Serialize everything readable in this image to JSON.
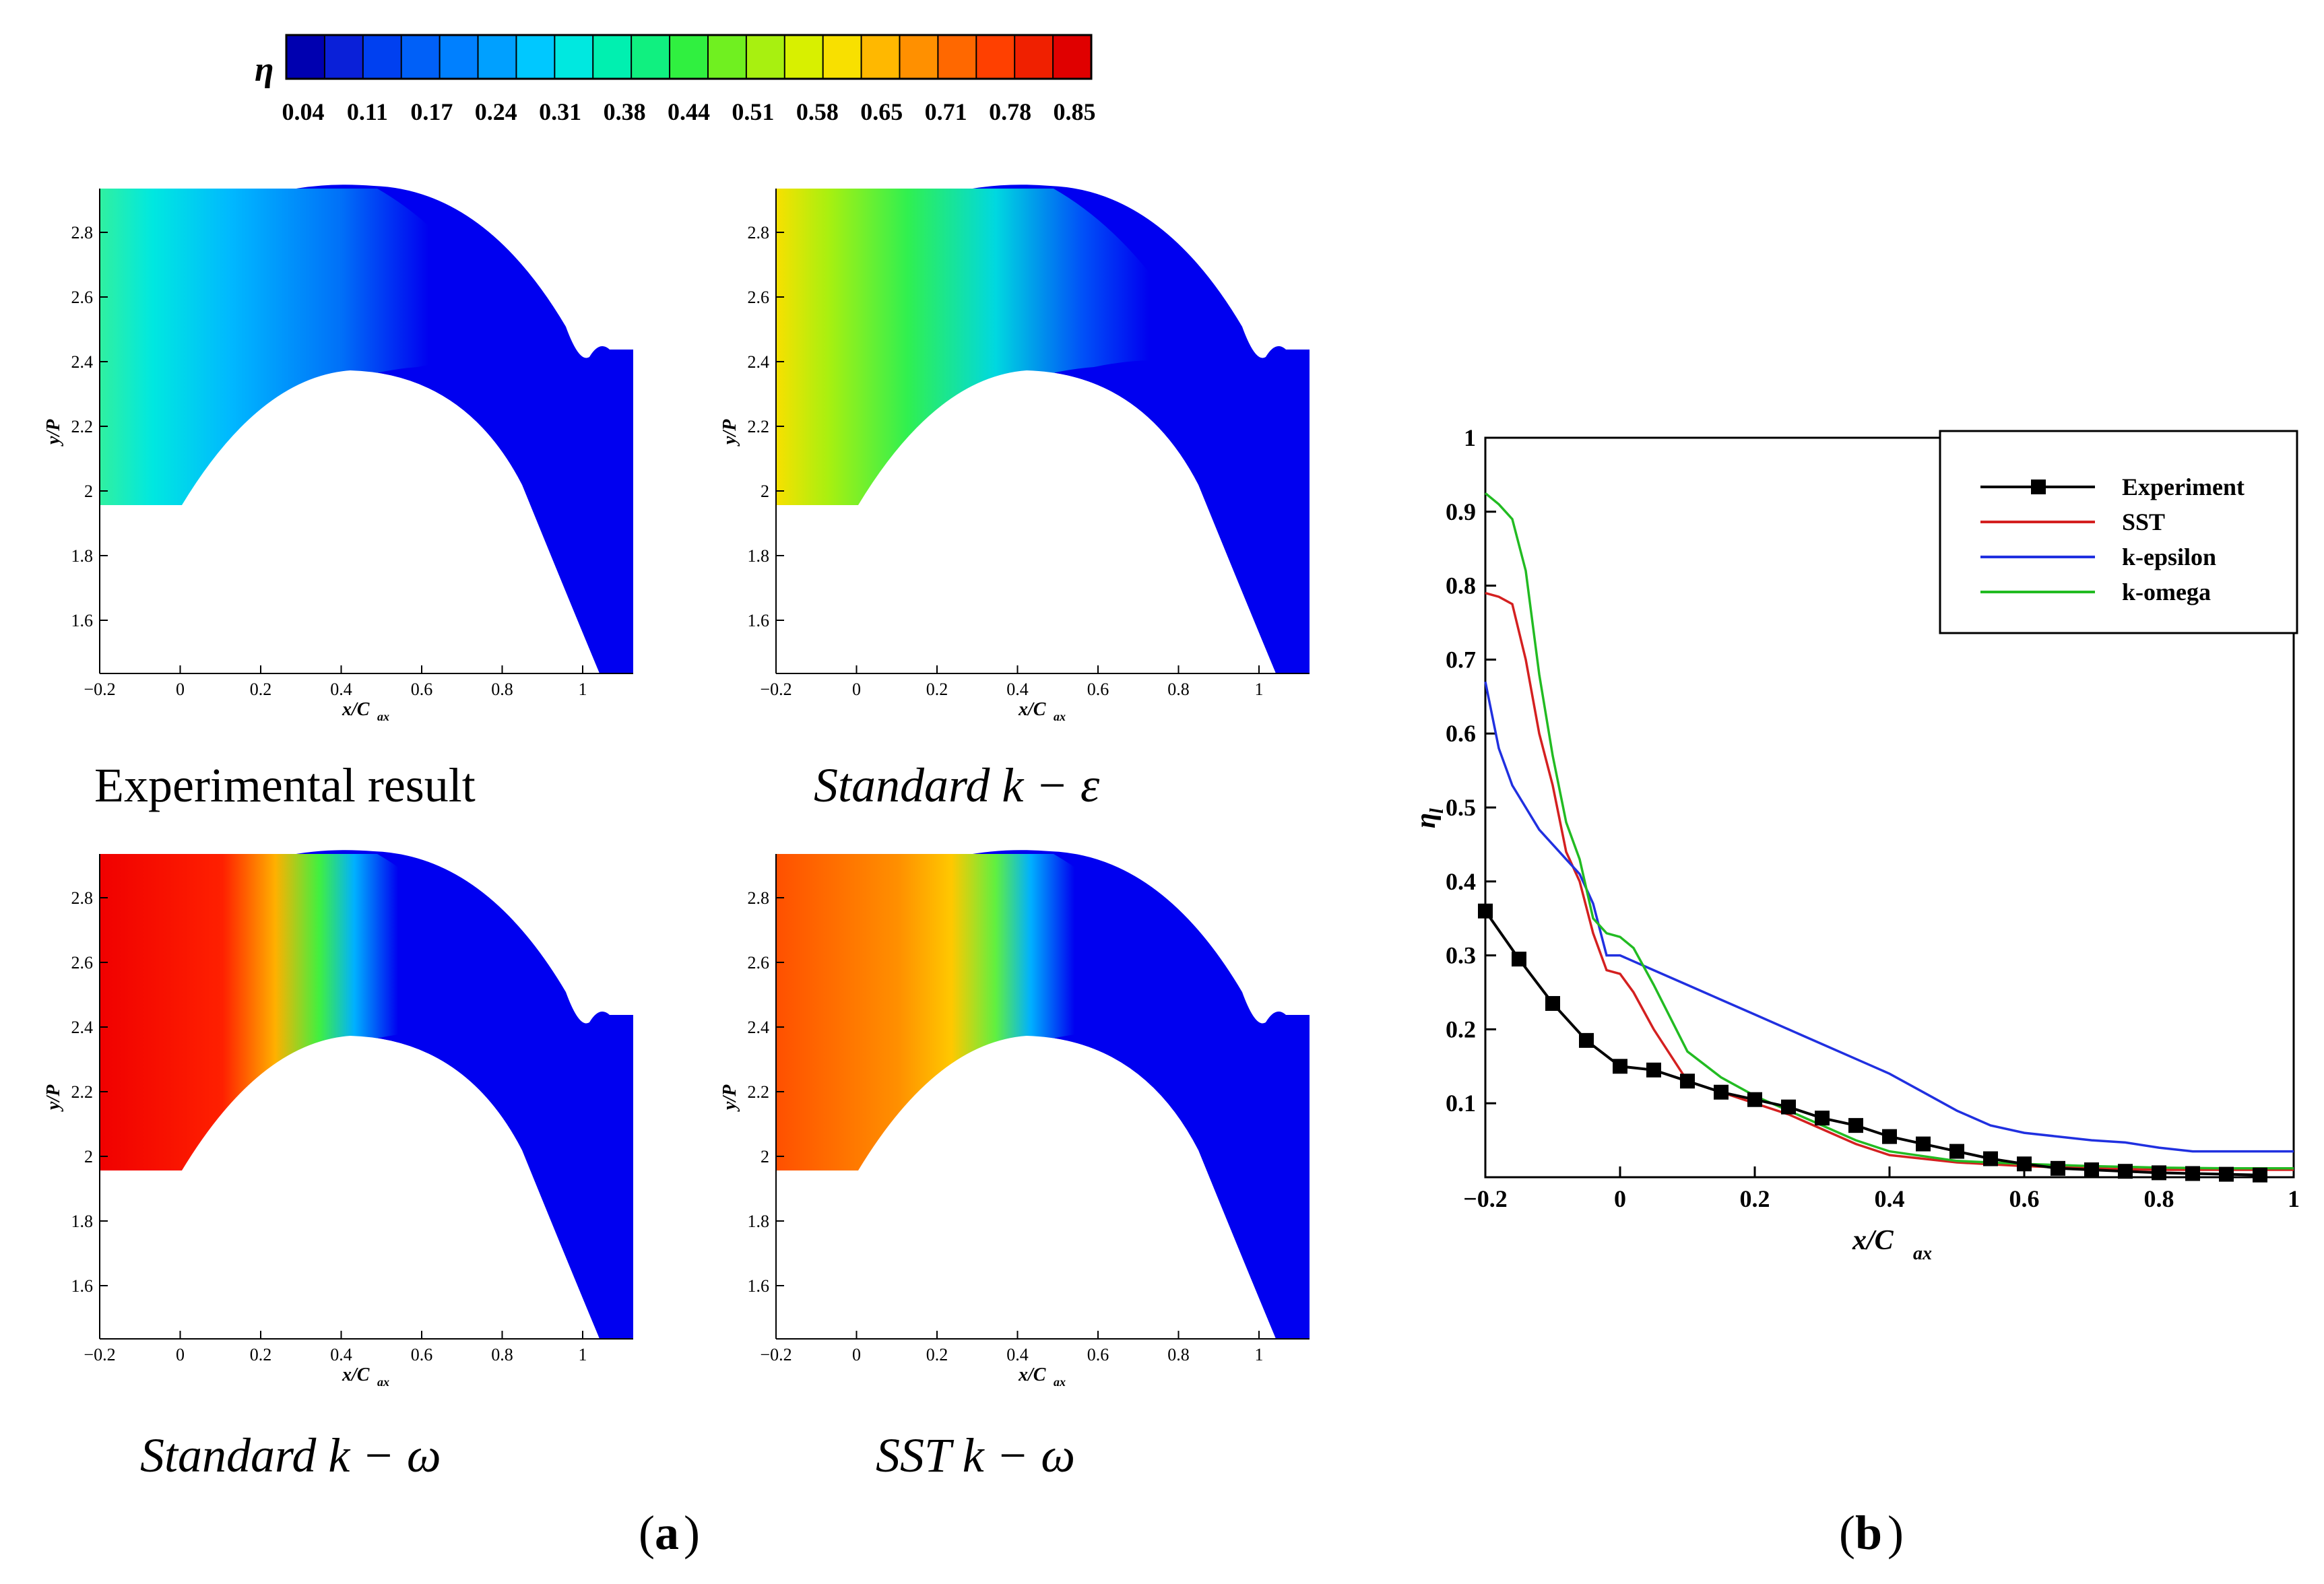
{
  "colorbar": {
    "symbol": "η",
    "ticks": [
      "0.04",
      "0.11",
      "0.17",
      "0.24",
      "0.31",
      "0.38",
      "0.44",
      "0.51",
      "0.58",
      "0.65",
      "0.71",
      "0.78",
      "0.85"
    ],
    "colors": [
      "#0000b0",
      "#0a20d8",
      "#0040f0",
      "#0060f8",
      "#0080ff",
      "#00a0ff",
      "#00c8ff",
      "#00e8e0",
      "#00f0b0",
      "#10f080",
      "#30f040",
      "#70f020",
      "#a8f010",
      "#d8f000",
      "#f8e000",
      "#ffb800",
      "#ff9000",
      "#ff6800",
      "#ff4000",
      "#f02000",
      "#e00000"
    ]
  },
  "contour_panels": [
    {
      "caption": "Experimental result",
      "field": "experiment"
    },
    {
      "caption": "Standard k − ε",
      "field": "k-epsilon"
    },
    {
      "caption": "Standard k − ω",
      "field": "k-omega"
    },
    {
      "caption": "SST k − ω",
      "field": "sst"
    }
  ],
  "panel_axes": {
    "xlabel": "x/C",
    "xlabel_sub": "ax",
    "ylabel": "y/P",
    "xticks": [
      "−0.2",
      "0",
      "0.2",
      "0.4",
      "0.6",
      "0.8",
      "1"
    ],
    "yticks": [
      "2.8",
      "2.6",
      "2.4",
      "2.2",
      "2",
      "1.8",
      "1.6"
    ]
  },
  "panel_labels": {
    "a": "a",
    "b": "b"
  },
  "chart_data": {
    "type": "line",
    "xlabel": "x/C",
    "xlabel_sub": "ax",
    "ylabel": "η",
    "ylabel_sub": "l",
    "xlim": [
      -0.2,
      1
    ],
    "ylim": [
      0,
      1
    ],
    "xticks": [
      -0.2,
      0,
      0.2,
      0.4,
      0.6,
      0.8,
      1
    ],
    "xtick_labels": [
      "−0.2",
      "0",
      "0.2",
      "0.4",
      "0.6",
      "0.8",
      "1"
    ],
    "yticks": [
      0.1,
      0.2,
      0.3,
      0.4,
      0.5,
      0.6,
      0.7,
      0.8,
      0.9,
      1
    ],
    "ytick_labels": [
      "0.1",
      "0.2",
      "0.3",
      "0.4",
      "0.5",
      "0.6",
      "0.7",
      "0.8",
      "0.9",
      "1"
    ],
    "legend_position": "top-right",
    "series": [
      {
        "name": "Experiment",
        "color": "#000000",
        "markers": true,
        "x": [
          -0.2,
          -0.15,
          -0.1,
          -0.05,
          0,
          0.05,
          0.1,
          0.15,
          0.2,
          0.25,
          0.3,
          0.35,
          0.4,
          0.45,
          0.5,
          0.55,
          0.6,
          0.65,
          0.7,
          0.75,
          0.8,
          0.85,
          0.9,
          0.95
        ],
        "y": [
          0.36,
          0.295,
          0.235,
          0.185,
          0.15,
          0.145,
          0.13,
          0.115,
          0.105,
          0.095,
          0.08,
          0.07,
          0.055,
          0.045,
          0.035,
          0.025,
          0.018,
          0.012,
          0.01,
          0.008,
          0.006,
          0.005,
          0.004,
          0.003
        ]
      },
      {
        "name": "SST",
        "color": "#d42020",
        "markers": false,
        "x": [
          -0.2,
          -0.18,
          -0.16,
          -0.14,
          -0.12,
          -0.1,
          -0.08,
          -0.06,
          -0.04,
          -0.02,
          0,
          0.02,
          0.05,
          0.1,
          0.15,
          0.2,
          0.25,
          0.3,
          0.35,
          0.4,
          0.5,
          0.6,
          0.7,
          0.8,
          0.9,
          1
        ],
        "y": [
          0.79,
          0.785,
          0.775,
          0.7,
          0.6,
          0.53,
          0.44,
          0.4,
          0.33,
          0.28,
          0.275,
          0.25,
          0.2,
          0.13,
          0.115,
          0.1,
          0.085,
          0.065,
          0.045,
          0.03,
          0.02,
          0.015,
          0.012,
          0.01,
          0.01,
          0.01
        ]
      },
      {
        "name": "k-epsilon",
        "color": "#2030e0",
        "markers": false,
        "x": [
          -0.2,
          -0.18,
          -0.16,
          -0.14,
          -0.12,
          -0.1,
          -0.08,
          -0.06,
          -0.04,
          -0.02,
          0,
          0.05,
          0.1,
          0.15,
          0.2,
          0.25,
          0.3,
          0.35,
          0.4,
          0.45,
          0.5,
          0.55,
          0.6,
          0.65,
          0.7,
          0.75,
          0.8,
          0.85,
          0.9,
          1
        ],
        "y": [
          0.67,
          0.58,
          0.53,
          0.5,
          0.47,
          0.45,
          0.43,
          0.41,
          0.37,
          0.3,
          0.3,
          0.28,
          0.26,
          0.24,
          0.22,
          0.2,
          0.18,
          0.16,
          0.14,
          0.115,
          0.09,
          0.07,
          0.06,
          0.055,
          0.05,
          0.047,
          0.04,
          0.035,
          0.035,
          0.035
        ]
      },
      {
        "name": "k-omega",
        "color": "#22bb22",
        "markers": false,
        "x": [
          -0.2,
          -0.18,
          -0.16,
          -0.14,
          -0.12,
          -0.1,
          -0.08,
          -0.06,
          -0.04,
          -0.02,
          0,
          0.02,
          0.05,
          0.1,
          0.15,
          0.2,
          0.25,
          0.3,
          0.35,
          0.4,
          0.5,
          0.6,
          0.7,
          0.8,
          0.9,
          1
        ],
        "y": [
          0.925,
          0.91,
          0.89,
          0.82,
          0.68,
          0.57,
          0.48,
          0.43,
          0.35,
          0.33,
          0.325,
          0.31,
          0.26,
          0.17,
          0.135,
          0.11,
          0.09,
          0.07,
          0.05,
          0.035,
          0.022,
          0.018,
          0.015,
          0.013,
          0.012,
          0.012
        ]
      }
    ]
  }
}
